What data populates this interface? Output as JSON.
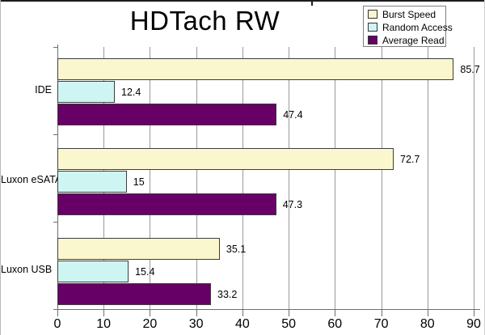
{
  "title": "HDTach RW",
  "chart_data": {
    "type": "bar",
    "orientation": "horizontal",
    "title": "HDTach RW",
    "categories": [
      "IDE",
      "Luxon eSATA",
      "Luxon USB"
    ],
    "series": [
      {
        "name": "Burst Speed",
        "color": "#FAF7CE",
        "values": [
          85.7,
          72.7,
          35.1
        ],
        "labels": [
          "85.7",
          "72.7",
          "35.1"
        ]
      },
      {
        "name": "Random Access",
        "color": "#CFF5F3",
        "values": [
          12.4,
          15,
          15.4
        ],
        "labels": [
          "12.4",
          "15",
          "15.4"
        ]
      },
      {
        "name": "Average Read",
        "color": "#660066",
        "values": [
          47.4,
          47.3,
          33.2
        ],
        "labels": [
          "47.4",
          "47.3",
          "33.2"
        ]
      }
    ],
    "xlim": [
      0,
      90
    ],
    "x_ticks": [
      "0",
      "10",
      "20",
      "30",
      "40",
      "50",
      "60",
      "70",
      "80",
      "90"
    ],
    "grid": "vertical",
    "legend_position": "top-right",
    "bar_order_per_category": [
      "Burst Speed",
      "Random Access",
      "Average Read"
    ]
  },
  "colors": {
    "gridline": "#999999",
    "axis": "#6e6e6e",
    "bar_border": "#3d3d3d",
    "background": "#ffffff",
    "legend_border": "#7f7f7f",
    "text": "#000000"
  }
}
